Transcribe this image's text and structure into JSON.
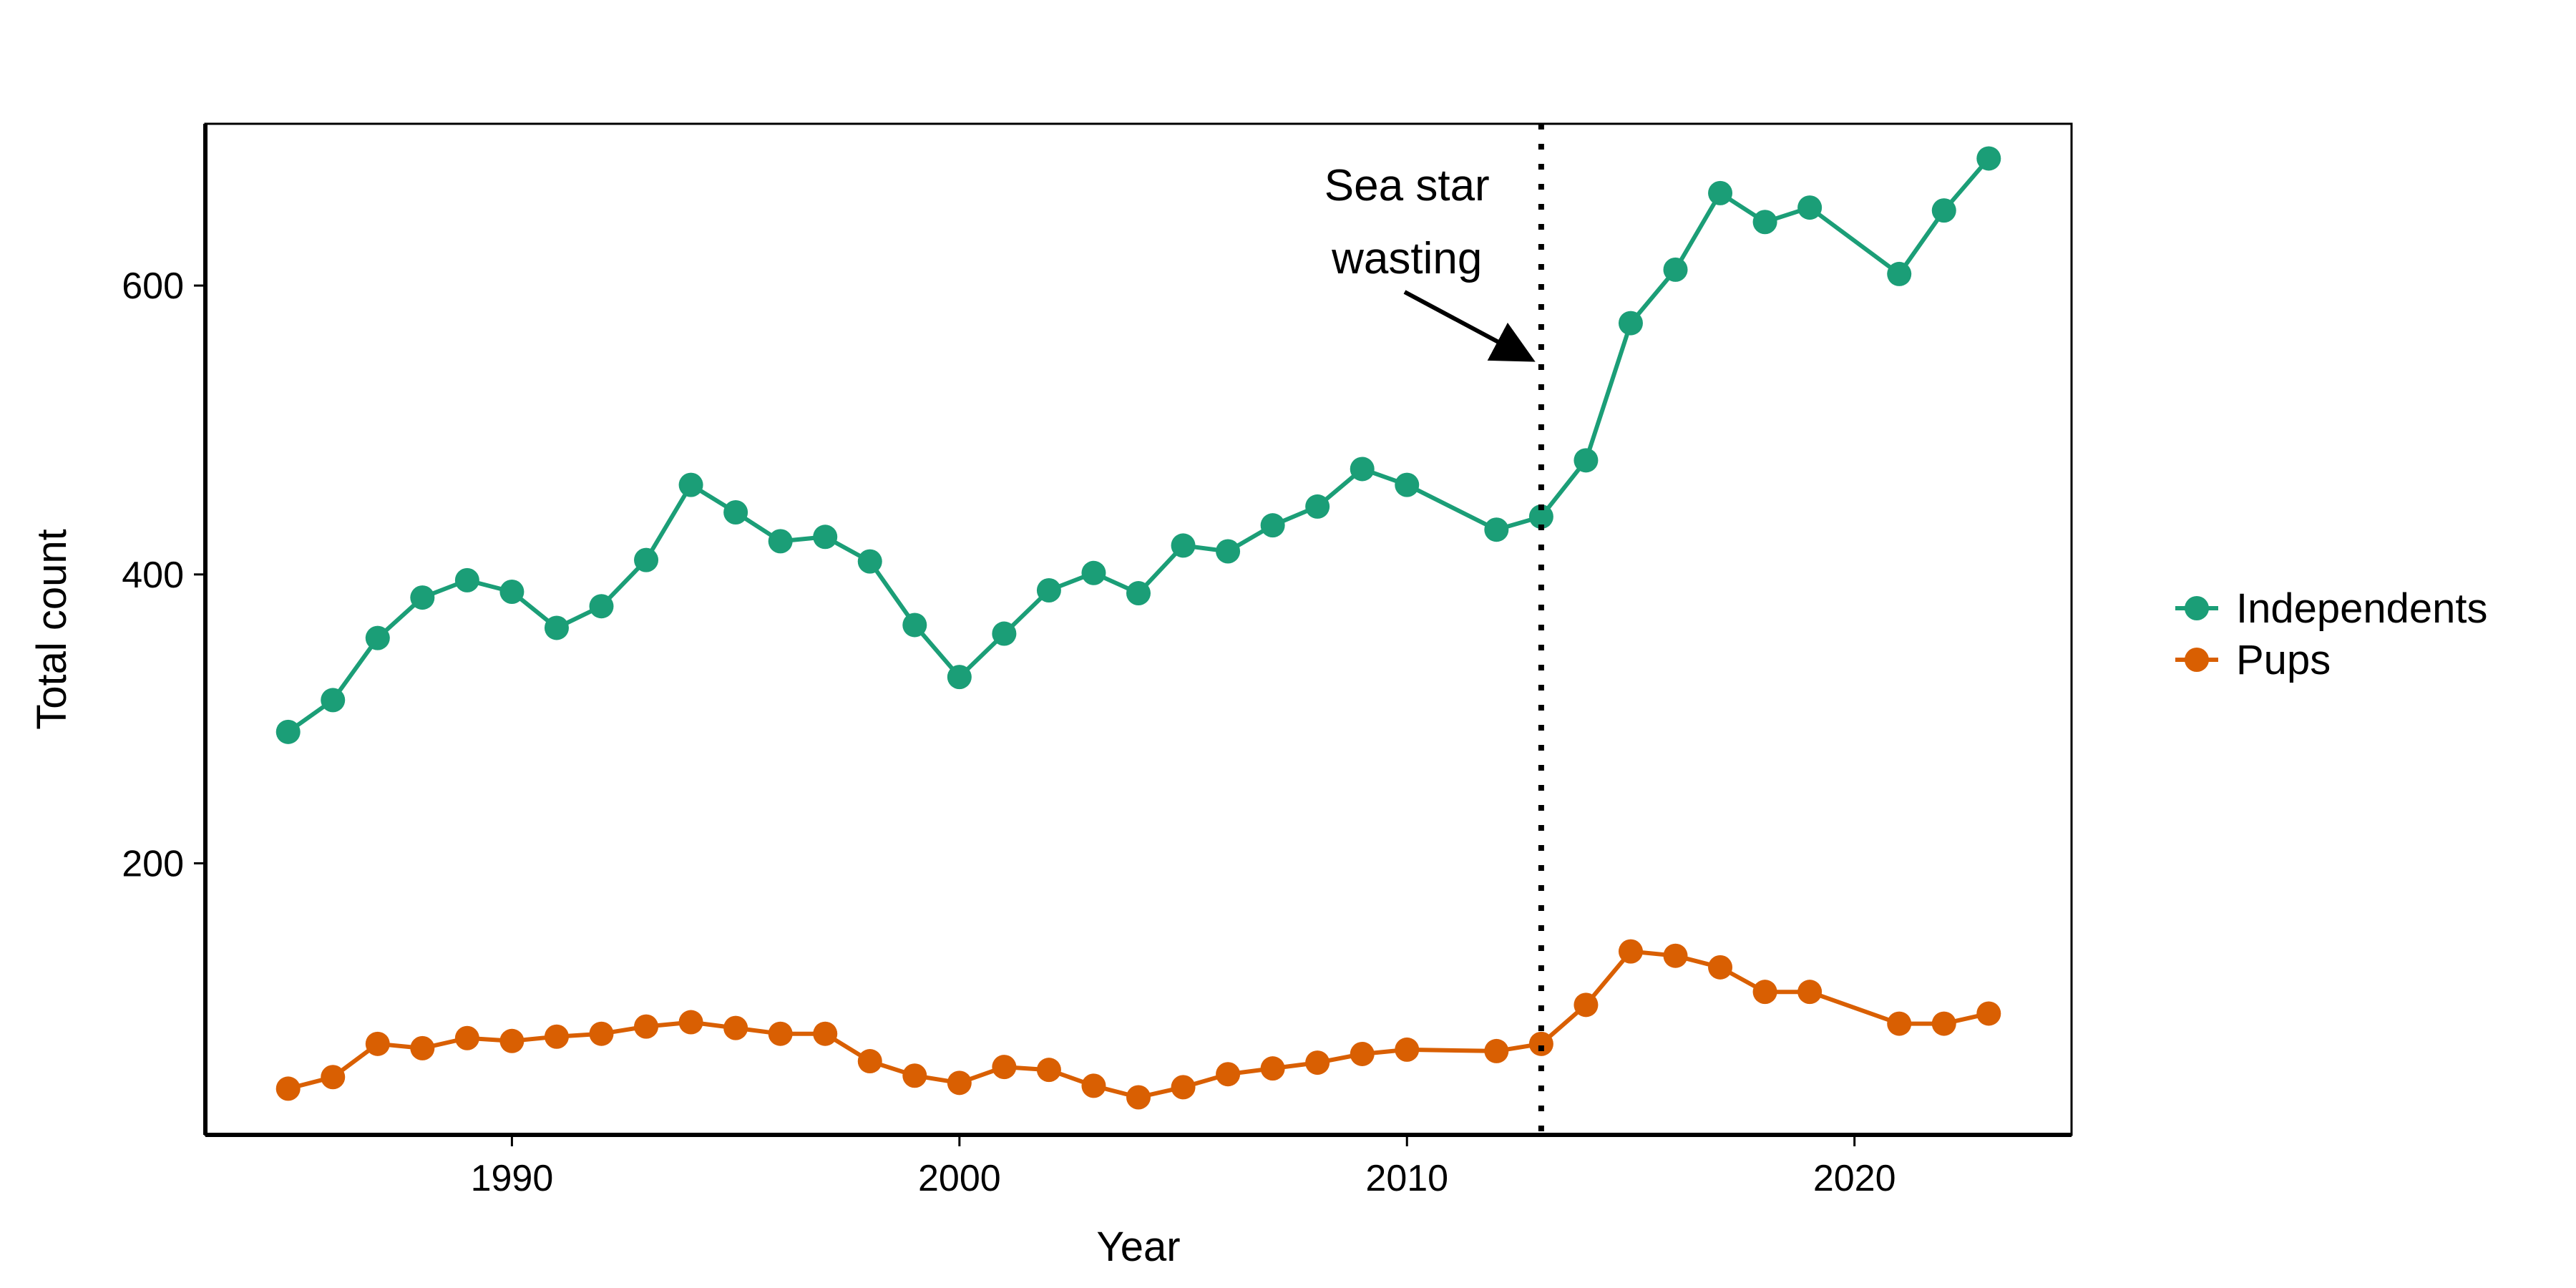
{
  "chart_data": {
    "type": "line",
    "title": "",
    "xlabel": "Year",
    "ylabel": "Total count",
    "xlim": [
      1983.15,
      2024.85
    ],
    "ylim": [
      12,
      712
    ],
    "xticks": [
      1990,
      2000,
      2010,
      2020
    ],
    "yticks": [
      200,
      400,
      600
    ],
    "grid": false,
    "legend_position": "right",
    "x": [
      1985,
      1986,
      1987,
      1988,
      1989,
      1990,
      1991,
      1992,
      1993,
      1994,
      1995,
      1996,
      1997,
      1998,
      1999,
      2000,
      2001,
      2002,
      2003,
      2004,
      2005,
      2006,
      2007,
      2008,
      2009,
      2010,
      2012,
      2013,
      2014,
      2015,
      2016,
      2017,
      2018,
      2019,
      2021,
      2022,
      2023
    ],
    "series": [
      {
        "name": "Independents",
        "color": "#1B9E77",
        "values": [
          291,
          313,
          356,
          384,
          396,
          388,
          363,
          378,
          410,
          462,
          443,
          423,
          426,
          409,
          365,
          329,
          359,
          389,
          401,
          387,
          420,
          416,
          434,
          447,
          473,
          462,
          431,
          440,
          479,
          574,
          611,
          664,
          644,
          654,
          608,
          652,
          688
        ]
      },
      {
        "name": "Pups",
        "color": "#D95F02",
        "values": [
          44,
          52,
          75,
          72,
          79,
          77,
          80,
          82,
          87,
          90,
          86,
          82,
          82,
          63,
          53,
          48,
          59,
          57,
          46,
          38,
          45,
          54,
          58,
          62,
          68,
          71,
          70,
          75,
          102,
          139,
          136,
          128,
          111,
          111,
          89,
          89,
          96
        ]
      }
    ],
    "annotations": [
      {
        "type": "vline",
        "x": 2013,
        "style": "dotted",
        "color": "#000000"
      },
      {
        "type": "arrow",
        "text_lines": [
          "Sea star",
          "wasting"
        ],
        "text_x": 2010.0,
        "target_x": 2012.7,
        "target_y": 550
      }
    ]
  }
}
